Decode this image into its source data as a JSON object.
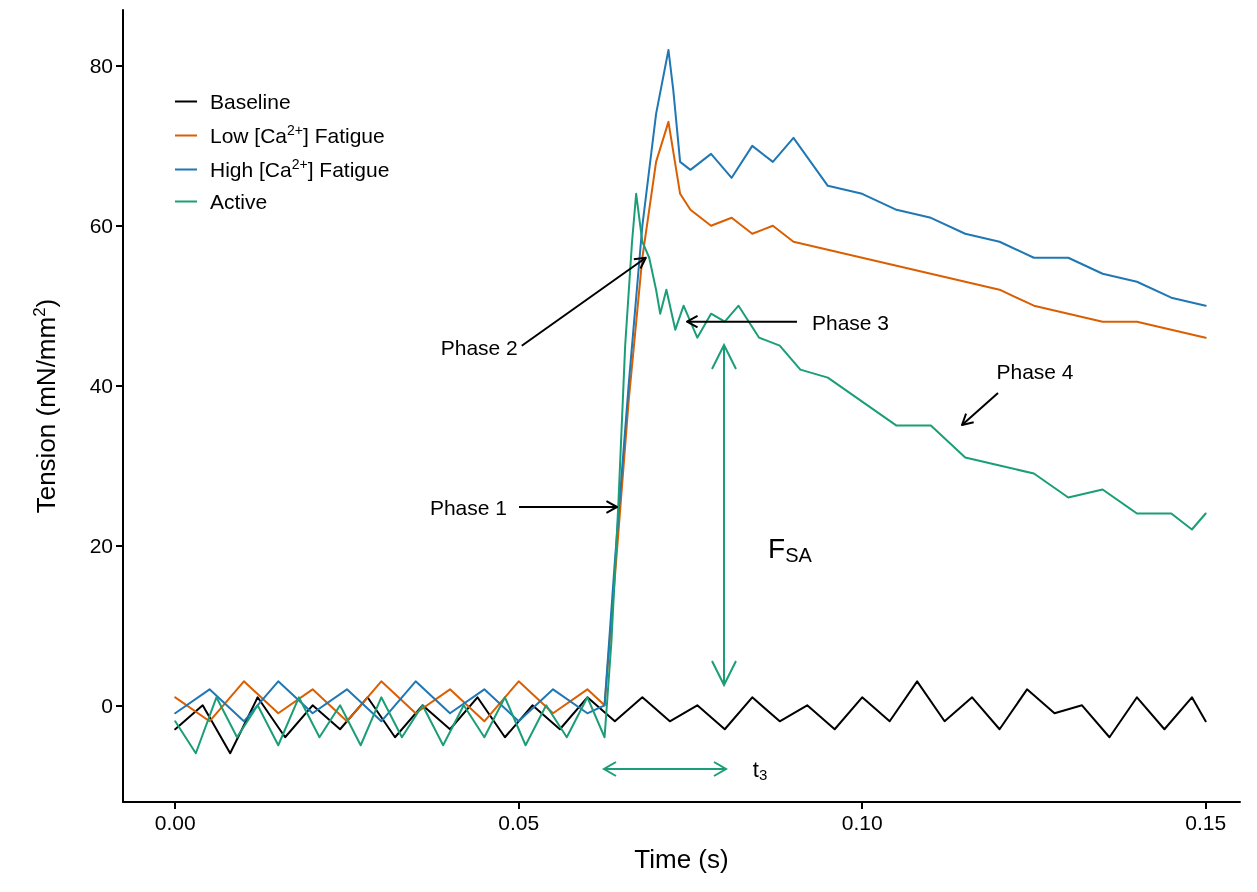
{
  "chart_data": {
    "type": "line",
    "xlabel": "Time (s)",
    "ylabel": "Tension (mN/mm$^{2}$)",
    "xlim": [
      -0.0076,
      0.155
    ],
    "ylim": [
      -12.1,
      87
    ],
    "xticks": [
      {
        "value": 0,
        "label": "0.00"
      },
      {
        "value": 0.05,
        "label": "0.05"
      },
      {
        "value": 0.1,
        "label": "0.10"
      },
      {
        "value": 0.15,
        "label": "0.15"
      }
    ],
    "yticks": [
      0,
      20,
      40,
      60,
      80
    ],
    "grid": false,
    "legend": "top left",
    "marker": "none",
    "line_style": "solid",
    "series": [
      {
        "name": "Baseline",
        "color": "#000000",
        "x": [
          0,
          0.004,
          0.008,
          0.012,
          0.016,
          0.02,
          0.024,
          0.028,
          0.032,
          0.036,
          0.04,
          0.044,
          0.048,
          0.052,
          0.056,
          0.06,
          0.064,
          0.068,
          0.072,
          0.076,
          0.08,
          0.084,
          0.088,
          0.092,
          0.096,
          0.1,
          0.104,
          0.108,
          0.112,
          0.116,
          0.12,
          0.124,
          0.128,
          0.132,
          0.136,
          0.14,
          0.144,
          0.148,
          0.15
        ],
        "values": [
          -3,
          0,
          -6,
          1,
          -4,
          0,
          -3,
          1,
          -4,
          0,
          -3,
          1,
          -4,
          0,
          -3,
          1,
          -2,
          1,
          -2,
          0,
          -3,
          1,
          -2,
          0,
          -3,
          1,
          -2,
          3,
          -2,
          1,
          -3,
          2,
          -1,
          0,
          -4,
          1,
          -3,
          1,
          -2
        ]
      },
      {
        "name": "Low [Ca$^{2+}$] Fatigue",
        "color": "#d95f02",
        "x": [
          0,
          0.005,
          0.01,
          0.015,
          0.02,
          0.025,
          0.03,
          0.035,
          0.04,
          0.045,
          0.05,
          0.055,
          0.06,
          0.0625,
          0.064,
          0.066,
          0.068,
          0.07,
          0.0718,
          0.0735,
          0.075,
          0.078,
          0.081,
          0.084,
          0.087,
          0.09,
          0.095,
          0.1,
          0.105,
          0.11,
          0.115,
          0.12,
          0.125,
          0.13,
          0.135,
          0.14,
          0.145,
          0.15
        ],
        "values": [
          1,
          -2,
          3,
          -1,
          2,
          -2,
          3,
          -1,
          2,
          -2,
          3,
          -1,
          2,
          0,
          16,
          38,
          56,
          68,
          73,
          64,
          62,
          60,
          61,
          59,
          60,
          58,
          57,
          56,
          55,
          54,
          53,
          52,
          50,
          49,
          48,
          48,
          47,
          46
        ]
      },
      {
        "name": "High [Ca$^{2+}$] Fatigue",
        "color": "#1f77b4",
        "x": [
          0,
          0.005,
          0.01,
          0.015,
          0.02,
          0.025,
          0.03,
          0.035,
          0.04,
          0.045,
          0.05,
          0.055,
          0.06,
          0.0625,
          0.064,
          0.066,
          0.068,
          0.07,
          0.0718,
          0.0725,
          0.0735,
          0.075,
          0.078,
          0.081,
          0.084,
          0.087,
          0.09,
          0.095,
          0.1,
          0.105,
          0.11,
          0.115,
          0.12,
          0.125,
          0.13,
          0.135,
          0.14,
          0.145,
          0.15
        ],
        "values": [
          -1,
          2,
          -2,
          3,
          -1,
          2,
          -2,
          3,
          -1,
          2,
          -2,
          2,
          -1,
          0,
          18,
          40,
          60,
          74,
          82,
          77,
          68,
          67,
          69,
          66,
          70,
          68,
          71,
          65,
          64,
          62,
          61,
          59,
          58,
          56,
          56,
          54,
          53,
          51,
          50
        ]
      },
      {
        "name": "Active",
        "color": "#1b9e77",
        "x": [
          0,
          0.003,
          0.006,
          0.009,
          0.012,
          0.015,
          0.018,
          0.021,
          0.024,
          0.027,
          0.03,
          0.033,
          0.036,
          0.039,
          0.042,
          0.045,
          0.048,
          0.051,
          0.054,
          0.057,
          0.06,
          0.0625,
          0.0635,
          0.0645,
          0.0655,
          0.0665,
          0.0671,
          0.068,
          0.069,
          0.07,
          0.0706,
          0.0715,
          0.0728,
          0.074,
          0.076,
          0.078,
          0.08,
          0.082,
          0.085,
          0.088,
          0.091,
          0.095,
          0.1,
          0.105,
          0.11,
          0.115,
          0.12,
          0.125,
          0.13,
          0.135,
          0.14,
          0.145,
          0.148,
          0.15
        ],
        "values": [
          -2,
          -6,
          1,
          -4,
          0,
          -5,
          1,
          -4,
          0,
          -5,
          1,
          -4,
          0,
          -5,
          0,
          -4,
          1,
          -5,
          0,
          -4,
          1,
          -4,
          8,
          25,
          45,
          58,
          64,
          58,
          56,
          52,
          49,
          52,
          47,
          50,
          46,
          49,
          48,
          50,
          46,
          45,
          42,
          41,
          38,
          35,
          35,
          31,
          30,
          29,
          26,
          27,
          24,
          24,
          22,
          24
        ]
      }
    ],
    "annotations": [
      "Phase 1",
      {
        "text": "Phase 2",
        "x": 0.0685,
        "y": 56
      },
      {
        "text": "Phase 3",
        "x": 0.0745,
        "y": 48
      },
      "Phase 4",
      "F$_{SA}$",
      "t$_{3}$"
    ]
  }
}
